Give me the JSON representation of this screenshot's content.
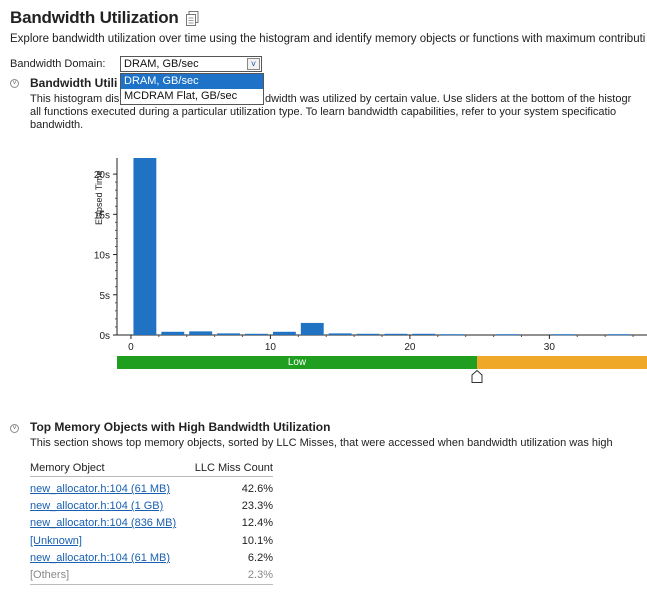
{
  "page": {
    "title": "Bandwidth Utilization",
    "subtitle": "Explore bandwidth utilization over time using the histogram and identify memory objects or functions with maximum contributi",
    "domain_label": "Bandwidth Domain:",
    "domain_selected": "DRAM, GB/sec",
    "domain_options": [
      "DRAM, GB/sec",
      "MCDRAM Flat, GB/sec"
    ]
  },
  "histogram_section": {
    "title": "Bandwidth Utili",
    "desc_line1a": "This histogram dis",
    "desc_line1b": "dwidth was utilized by certain value. Use sliders at the bottom of the histogr",
    "desc_line2": "all functions executed during a particular utilization type. To learn bandwidth capabilities, refer to your system specificatio",
    "desc_line3": "bandwidth."
  },
  "chart_data": {
    "type": "bar",
    "ylabel": "Elapsed Time",
    "y_ticks": [
      "0s",
      "5s",
      "10s",
      "15s",
      "20s"
    ],
    "x_ticks": [
      "0",
      "10",
      "20",
      "30"
    ],
    "ylim": [
      0,
      22
    ],
    "xlim": [
      -1,
      37
    ],
    "x": [
      1,
      3,
      5,
      7,
      9,
      11,
      13,
      15,
      17,
      19,
      21,
      23,
      27,
      31,
      35
    ],
    "values": [
      22,
      0.4,
      0.45,
      0.2,
      0.15,
      0.4,
      1.5,
      0.2,
      0.15,
      0.15,
      0.15,
      0.1,
      0.1,
      0.1,
      0.1
    ],
    "bar_color": "#1f73c2"
  },
  "utilization_bar": {
    "low_label": "Low",
    "low_color": "#1f9e1f",
    "medium_color": "#f0a828"
  },
  "memory_section": {
    "title": "Top Memory Objects with High Bandwidth Utilization",
    "desc": "This section shows top memory objects, sorted by LLC Misses, that were accessed when bandwidth utilization was high",
    "col_object": "Memory Object",
    "col_llc": "LLC Miss Count",
    "rows": [
      {
        "object": "new_allocator.h:104 (61 MB)",
        "llc": "42.6%"
      },
      {
        "object": "new_allocator.h:104 (1 GB)",
        "llc": "23.3%"
      },
      {
        "object": "new_allocator.h:104 (836 MB)",
        "llc": "12.4%"
      },
      {
        "object": "[Unknown]",
        "llc": "10.1%"
      },
      {
        "object": "new_allocator.h:104 (61 MB)",
        "llc": "6.2%"
      },
      {
        "object": "[Others]",
        "llc": "2.3%"
      }
    ]
  }
}
